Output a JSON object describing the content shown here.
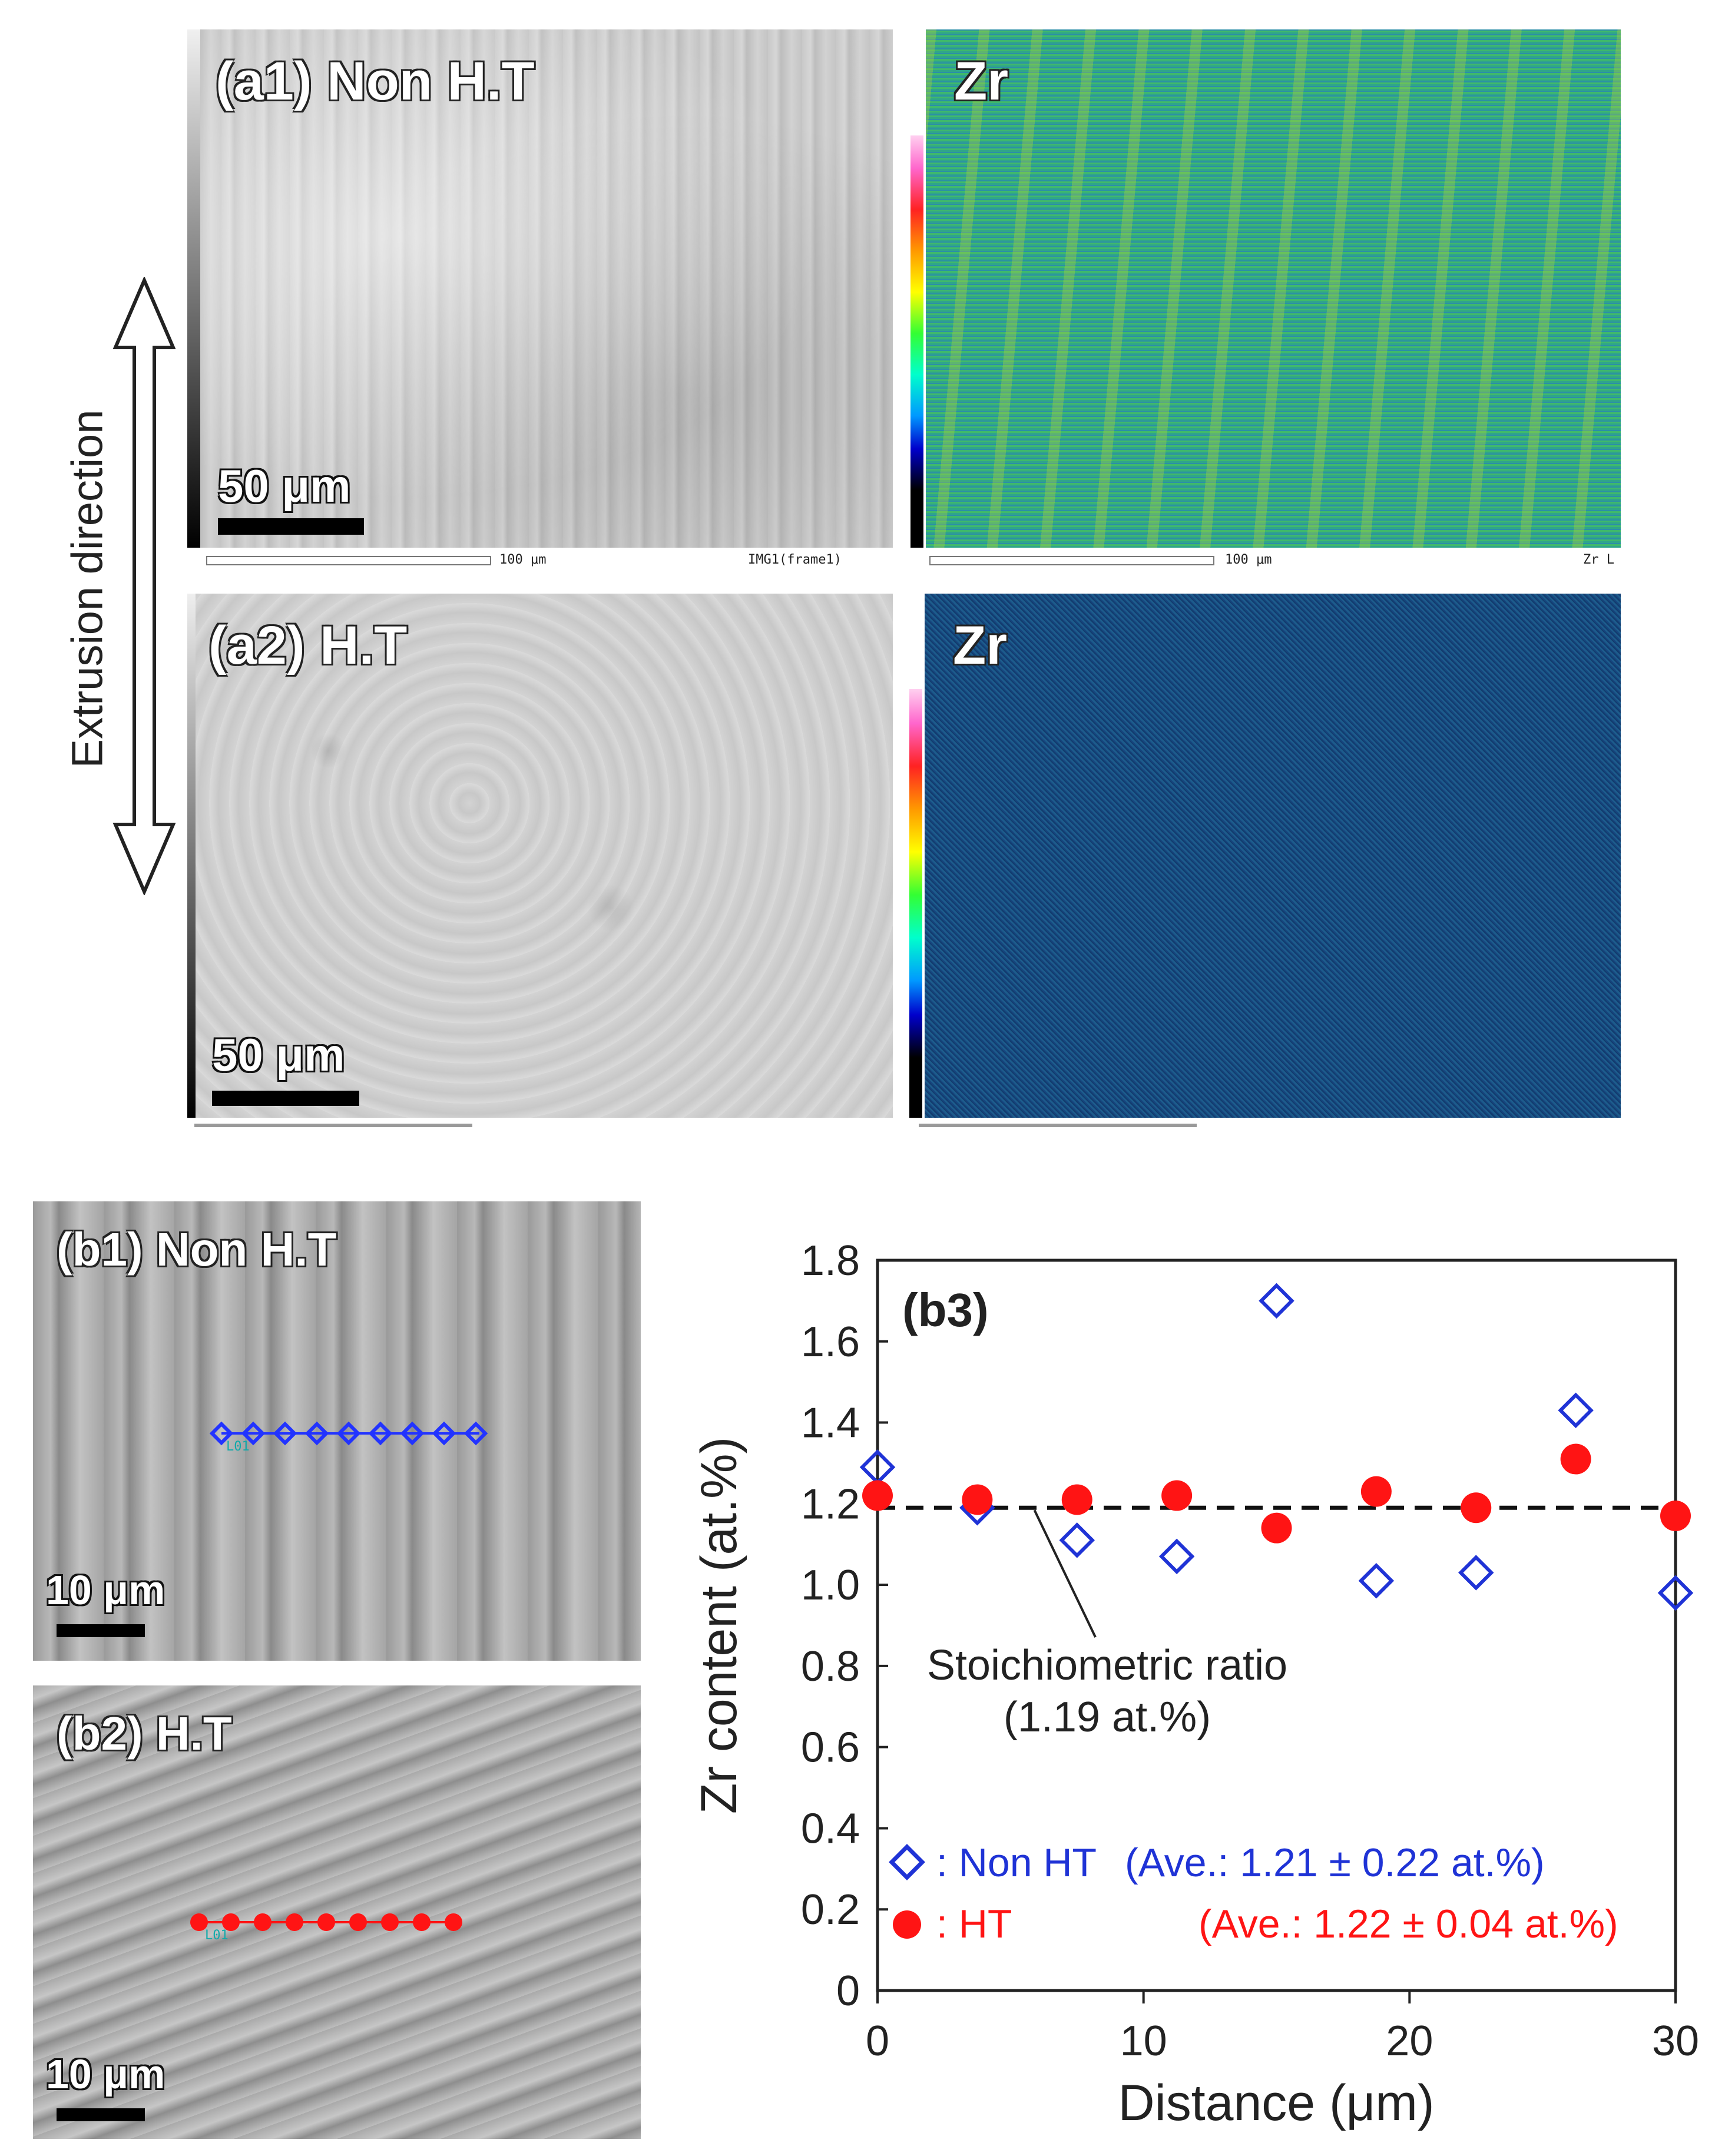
{
  "top": {
    "a1_label": "(a1) Non H.T",
    "a2_label": "(a2) H.T",
    "zr_label_1": "Zr",
    "zr_label_2": "Zr",
    "scale_a1": "50 μm",
    "scale_a2": "50 μm",
    "cap_a1_bar": "100 μm",
    "cap_a1_right": "IMG1(frame1)",
    "cap_zr1_bar": "100 μm",
    "cap_zr1_right": "Zr L",
    "extrusion_label": "Extrusion direction"
  },
  "bottom": {
    "b1_label": "(b1) Non H.T",
    "b2_label": "(b2) H.T",
    "scale_b1": "10 μm",
    "scale_b2": "10 μm",
    "line_marker_b1": "L01",
    "line_marker_b2": "L01"
  },
  "colors": {
    "non_ht": "#1f33d6",
    "ht": "#ff1414"
  },
  "chart_data": {
    "type": "scatter",
    "panel_label": "(b3)",
    "xlabel": "Distance (μm)",
    "ylabel": "Zr content (at.%)",
    "xlim": [
      0,
      30
    ],
    "ylim": [
      0,
      1.8
    ],
    "xticks": [
      0,
      10,
      20,
      30
    ],
    "yticks": [
      0,
      0.2,
      0.4,
      0.6,
      0.8,
      1.0,
      1.2,
      1.4,
      1.6,
      1.8
    ],
    "ytick_labels": [
      "0",
      "0.2",
      "0.4",
      "0.6",
      "0.8",
      "1.0",
      "1.2",
      "1.4",
      "1.6",
      "1.8"
    ],
    "reference_line": {
      "y": 1.19,
      "label_line1": "Stoichiometric ratio",
      "label_line2": "(1.19 at.%)"
    },
    "series": [
      {
        "name": "Non HT",
        "marker": "open-diamond",
        "legend_label": ": Non HT",
        "legend_avg": "(Ave.: 1.21 ± 0.22 at.%)",
        "x": [
          0,
          3.75,
          7.5,
          11.25,
          15,
          18.75,
          22.5,
          26.25,
          30
        ],
        "y": [
          1.29,
          1.19,
          1.11,
          1.07,
          1.7,
          1.01,
          1.03,
          1.43,
          0.98
        ]
      },
      {
        "name": "HT",
        "marker": "filled-circle",
        "legend_label": ": HT",
        "legend_avg": "(Ave.: 1.22 ± 0.04 at.%)",
        "x": [
          0,
          3.75,
          7.5,
          11.25,
          15,
          18.75,
          22.5,
          26.25,
          30
        ],
        "y": [
          1.22,
          1.21,
          1.21,
          1.22,
          1.14,
          1.23,
          1.19,
          1.31,
          1.17
        ]
      }
    ]
  }
}
